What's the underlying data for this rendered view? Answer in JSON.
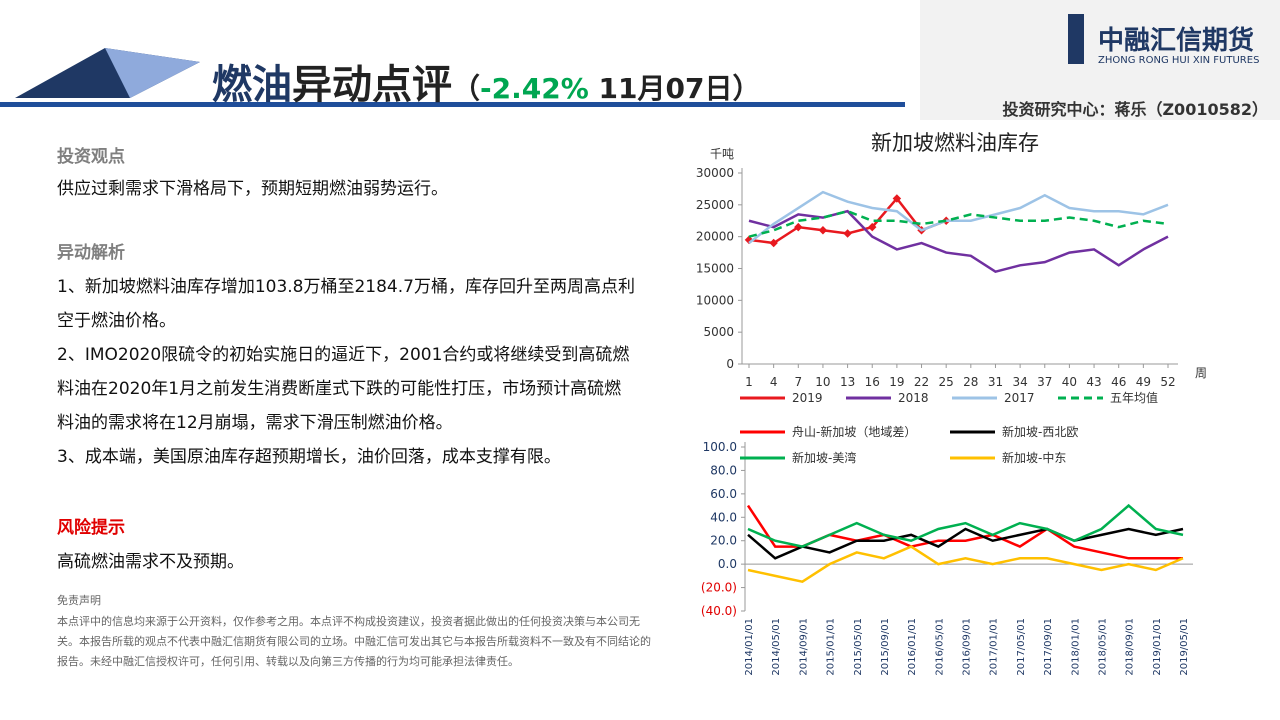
{
  "header": {
    "title_a": "燃油",
    "title_b": "异动点评",
    "open": "（",
    "change": "-2.42%",
    "date": "11月07日",
    "close": "）",
    "logo_cn": "中融汇信期货",
    "logo_en": "ZHONG RONG HUI XIN FUTURES",
    "author": "投资研究中心：蒋乐（Z0010582）"
  },
  "body": {
    "view_heading": "投资观点",
    "view_text": "供应过剩需求下滑格局下，预期短期燃油弱势运行。",
    "analysis_heading": "异动解析",
    "analysis": [
      "1、新加坡燃料油库存增加103.8万桶至2184.7万桶，库存回升至两周高点利空于燃油价格。",
      "2、IMO2020限硫令的初始实施日的逼近下，2001合约或将继续受到高硫燃料油在2020年1月之前发生消费断崖式下跌的可能性打压，市场预计高硫燃料油的需求将在12月崩塌，需求下滑压制燃油价格。",
      "3、成本端，美国原油库存超预期增长，油价回落，成本支撑有限。"
    ],
    "risk_heading": "风险提示",
    "risk_text": "高硫燃油需求不及预期。",
    "disclaimer_heading": "免责声明",
    "disclaimer_text": "本点评中的信息均来源于公开资料，仅作参考之用。本点评不构成投资建议，投资者据此做出的任何投资决策与本公司无关。本报告所载的观点不代表中融汇信期货有限公司的立场。中融汇信可发出其它与本报告所载资料不一致及有不同结论的报告。未经中融汇信授权许可，任何引用、转载以及向第三方传播的行为均可能承担法律责任。"
  },
  "chart_data": [
    {
      "type": "line",
      "title": "新加坡燃料油库存",
      "y_label": "千吨",
      "x_label": "周",
      "x": [
        1,
        4,
        7,
        10,
        13,
        16,
        19,
        22,
        25,
        28,
        31,
        34,
        37,
        40,
        43,
        46,
        49,
        52
      ],
      "xlim": [
        1,
        52
      ],
      "xticks": [
        1,
        4,
        7,
        10,
        13,
        16,
        19,
        22,
        25,
        28,
        31,
        34,
        37,
        40,
        43,
        46,
        49,
        52
      ],
      "ylim": [
        0,
        30000
      ],
      "yticks": [
        0,
        5000,
        10000,
        15000,
        20000,
        25000,
        30000
      ],
      "series": [
        {
          "name": "2019",
          "color": "#e8191f",
          "markers": true,
          "values": [
            19500,
            19000,
            21500,
            21000,
            20500,
            21500,
            26000,
            21000,
            22500,
            null,
            null,
            null,
            null,
            null,
            null,
            null,
            null,
            null
          ]
        },
        {
          "name": "2018",
          "color": "#7030a0",
          "values": [
            22500,
            21500,
            23500,
            23000,
            24000,
            20000,
            18000,
            19000,
            17500,
            17000,
            14500,
            15500,
            16000,
            17500,
            18000,
            15500,
            18000,
            20000
          ]
        },
        {
          "name": "2017",
          "color": "#9dc3e6",
          "values": [
            19000,
            22000,
            24500,
            27000,
            25500,
            24500,
            24000,
            21000,
            22500,
            22500,
            23500,
            24500,
            26500,
            24500,
            24000,
            24000,
            23500,
            25000
          ]
        },
        {
          "name": "五年均值",
          "color": "#00b050",
          "dashed": true,
          "values": [
            20000,
            21000,
            22500,
            23000,
            24000,
            22500,
            22500,
            22000,
            22500,
            23500,
            23000,
            22500,
            22500,
            23000,
            22500,
            21500,
            22500,
            22000
          ]
        }
      ]
    },
    {
      "type": "line",
      "categories": [
        "2014/01/01",
        "2014/05/01",
        "2014/09/01",
        "2015/01/01",
        "2015/05/01",
        "2015/09/01",
        "2016/01/01",
        "2016/05/01",
        "2016/09/01",
        "2017/01/01",
        "2017/05/01",
        "2017/09/01",
        "2018/01/01",
        "2018/05/01",
        "2018/09/01",
        "2019/01/01",
        "2019/05/01"
      ],
      "ylim": [
        -40,
        100
      ],
      "yticks": [
        {
          "value": 100,
          "label": "100.0"
        },
        {
          "value": 80,
          "label": "80.0"
        },
        {
          "value": 60,
          "label": "60.0"
        },
        {
          "value": 40,
          "label": "40.0"
        },
        {
          "value": 20,
          "label": "20.0"
        },
        {
          "value": 0,
          "label": "0.0"
        },
        {
          "value": -20,
          "label": "(20.0)"
        },
        {
          "value": -40,
          "label": "(40.0)"
        }
      ],
      "series": [
        {
          "name": "舟山-新加坡（地域差）",
          "color": "#ff0000",
          "values": [
            50,
            15,
            15,
            25,
            20,
            25,
            15,
            20,
            20,
            25,
            15,
            30,
            15,
            10,
            5,
            5,
            5
          ]
        },
        {
          "name": "新加坡-西北欧",
          "color": "#000000",
          "values": [
            25,
            5,
            15,
            10,
            20,
            20,
            25,
            15,
            30,
            20,
            25,
            30,
            20,
            25,
            30,
            25,
            30
          ]
        },
        {
          "name": "新加坡-美湾",
          "color": "#00b050",
          "values": [
            30,
            20,
            15,
            25,
            35,
            25,
            20,
            30,
            35,
            25,
            35,
            30,
            20,
            30,
            50,
            30,
            25
          ]
        },
        {
          "name": "新加坡-中东",
          "color": "#ffc000",
          "values": [
            -5,
            -10,
            -15,
            0,
            10,
            5,
            15,
            0,
            5,
            0,
            5,
            5,
            0,
            -5,
            0,
            -5,
            5
          ]
        }
      ]
    }
  ]
}
